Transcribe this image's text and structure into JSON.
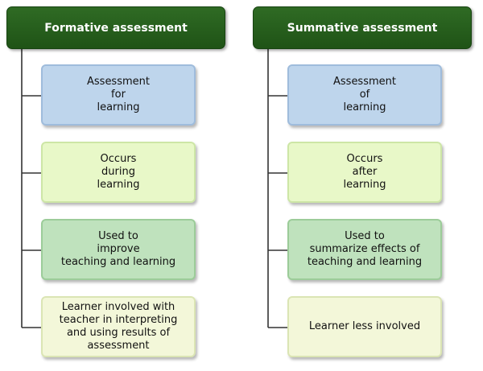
{
  "colors": {
    "header_fill": "#2a6320",
    "connector": "#333333",
    "box_blue": "#bed5ec",
    "box_lime": "#e8f8c8",
    "box_green": "#bfe2bd",
    "box_cream": "#f3f7d9"
  },
  "formative": {
    "title": "Formative assessment",
    "items": [
      "Assessment\nfor\nlearning",
      "Occurs\nduring\nlearning",
      "Used to\nimprove\nteaching and learning",
      "Learner involved with\nteacher in interpreting\nand using results of\nassessment"
    ]
  },
  "summative": {
    "title": "Summative assessment",
    "items": [
      "Assessment\nof\nlearning",
      "Occurs\nafter\nlearning",
      "Used to\nsummarize effects of\nteaching and learning",
      "Learner less involved"
    ]
  }
}
